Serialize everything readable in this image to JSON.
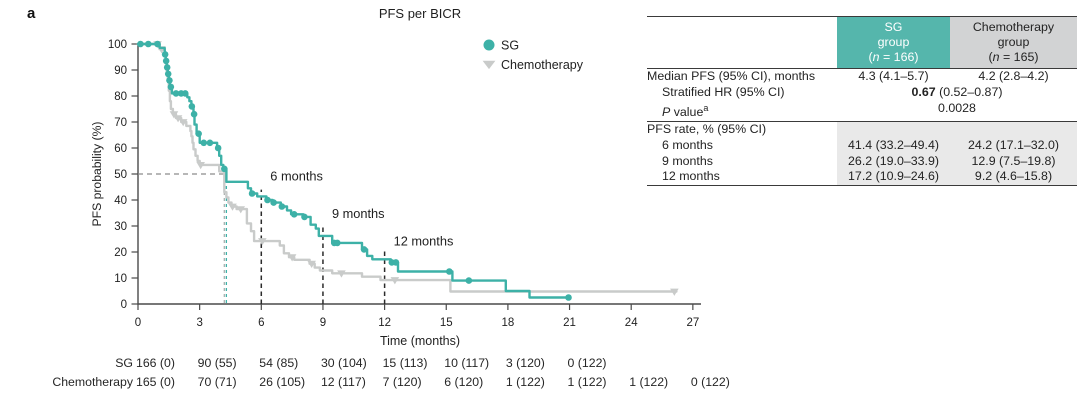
{
  "panel_label": "a",
  "chart_data": {
    "type": "line",
    "subtype": "kaplan-meier-step",
    "title": "PFS per BICR",
    "xlabel": "Time (months)",
    "ylabel": "PFS probability (%)",
    "xlim": [
      0,
      27
    ],
    "ylim": [
      0,
      100
    ],
    "x_ticks": [
      0,
      3,
      6,
      9,
      12,
      15,
      18,
      21,
      24,
      27
    ],
    "y_ticks": [
      0,
      10,
      20,
      30,
      40,
      50,
      60,
      70,
      80,
      90,
      100
    ],
    "grid": false,
    "legend_position": "upper-right-inside",
    "axis_color": "#4a4a4a",
    "series": [
      {
        "name": "Chemotherapy",
        "color": "#c9cbca",
        "marker": "triangle-down",
        "median_months": 4.2,
        "end_t": 26.2,
        "steps": [
          [
            0,
            100
          ],
          [
            1.05,
            98
          ],
          [
            1.3,
            95.5
          ],
          [
            1.35,
            92.5
          ],
          [
            1.4,
            89.5
          ],
          [
            1.45,
            86
          ],
          [
            1.5,
            82
          ],
          [
            1.55,
            78
          ],
          [
            1.6,
            75
          ],
          [
            1.7,
            73
          ],
          [
            1.85,
            71.5
          ],
          [
            2.1,
            70
          ],
          [
            2.35,
            68.5
          ],
          [
            2.55,
            66.5
          ],
          [
            2.6,
            64.5
          ],
          [
            2.65,
            62
          ],
          [
            2.7,
            59.5
          ],
          [
            2.8,
            57
          ],
          [
            2.9,
            55
          ],
          [
            3.0,
            53.5
          ],
          [
            3.95,
            51
          ],
          [
            4.2,
            43
          ],
          [
            4.3,
            41
          ],
          [
            4.4,
            39
          ],
          [
            4.55,
            37.5
          ],
          [
            4.8,
            36.5
          ],
          [
            5.3,
            31
          ],
          [
            5.5,
            28
          ],
          [
            5.65,
            24.2
          ],
          [
            6.9,
            22.5
          ],
          [
            7.1,
            19.5
          ],
          [
            7.35,
            18
          ],
          [
            7.6,
            17
          ],
          [
            8.35,
            15.5
          ],
          [
            8.6,
            14
          ],
          [
            8.85,
            12.9
          ],
          [
            9.45,
            11.8
          ],
          [
            10.9,
            10.5
          ],
          [
            11.8,
            9.2
          ],
          [
            15.2,
            4.8
          ]
        ],
        "censor_marks": [
          [
            0.95,
            100
          ],
          [
            1.15,
            98
          ],
          [
            1.75,
            73
          ],
          [
            1.95,
            71.5
          ],
          [
            2.2,
            70
          ],
          [
            3.05,
            53.5
          ],
          [
            4.6,
            37.5
          ],
          [
            5.0,
            36.5
          ],
          [
            6.05,
            24.2
          ],
          [
            7.5,
            18
          ],
          [
            8.45,
            15.5
          ],
          [
            9.9,
            11.8
          ],
          [
            12.5,
            9.2
          ],
          [
            26.1,
            4.8
          ]
        ]
      },
      {
        "name": "SG",
        "color": "#3db1a7",
        "marker": "circle",
        "median_months": 4.3,
        "end_t": 20.95,
        "steps": [
          [
            0,
            100
          ],
          [
            1.05,
            98.5
          ],
          [
            1.3,
            96
          ],
          [
            1.35,
            93.5
          ],
          [
            1.4,
            91
          ],
          [
            1.45,
            88.5
          ],
          [
            1.5,
            86
          ],
          [
            1.55,
            83.5
          ],
          [
            1.65,
            81
          ],
          [
            2.4,
            79.5
          ],
          [
            2.5,
            78
          ],
          [
            2.6,
            76
          ],
          [
            2.7,
            73
          ],
          [
            2.75,
            69
          ],
          [
            2.85,
            65.5
          ],
          [
            3.0,
            62
          ],
          [
            3.85,
            60
          ],
          [
            3.95,
            57
          ],
          [
            4.05,
            53.5
          ],
          [
            4.15,
            52
          ],
          [
            4.3,
            47
          ],
          [
            5.35,
            44.5
          ],
          [
            5.5,
            42.5
          ],
          [
            5.8,
            41.4
          ],
          [
            6.25,
            40
          ],
          [
            6.55,
            39
          ],
          [
            6.95,
            37.5
          ],
          [
            7.25,
            36
          ],
          [
            7.45,
            34.5
          ],
          [
            8.05,
            33.5
          ],
          [
            8.4,
            30.5
          ],
          [
            8.65,
            29
          ],
          [
            8.8,
            26.2
          ],
          [
            9.45,
            23.5
          ],
          [
            10.9,
            21
          ],
          [
            11.15,
            18.5
          ],
          [
            11.4,
            17.2
          ],
          [
            12.3,
            16
          ],
          [
            12.65,
            12.5
          ],
          [
            15.3,
            9
          ],
          [
            17.9,
            5
          ],
          [
            19.05,
            2.5
          ]
        ],
        "censor_marks": [
          [
            0.12,
            100
          ],
          [
            0.5,
            100
          ],
          [
            0.95,
            100
          ],
          [
            1.32,
            96
          ],
          [
            1.37,
            93.5
          ],
          [
            1.42,
            91
          ],
          [
            1.47,
            88.5
          ],
          [
            1.53,
            86
          ],
          [
            1.6,
            83.5
          ],
          [
            1.85,
            81
          ],
          [
            2.1,
            81
          ],
          [
            2.3,
            81
          ],
          [
            2.62,
            76
          ],
          [
            2.73,
            73
          ],
          [
            2.95,
            65.5
          ],
          [
            3.2,
            62
          ],
          [
            3.5,
            62
          ],
          [
            3.9,
            60
          ],
          [
            4.2,
            52
          ],
          [
            5.55,
            42.5
          ],
          [
            6.3,
            40
          ],
          [
            6.6,
            39
          ],
          [
            7.0,
            37.5
          ],
          [
            7.6,
            34.5
          ],
          [
            8.1,
            33.5
          ],
          [
            9.55,
            23.5
          ],
          [
            9.7,
            23.5
          ],
          [
            11.0,
            21
          ],
          [
            12.35,
            16
          ],
          [
            12.55,
            16
          ],
          [
            15.15,
            12.5
          ],
          [
            16.1,
            9
          ],
          [
            20.95,
            2.5
          ]
        ]
      }
    ],
    "median_annotation": {
      "y_pct": 50,
      "h_line_from_t": 0,
      "h_line_to_t": 4.3,
      "h_color": "#8c8c8c",
      "verticals": [
        {
          "t": 4.2,
          "color": "#abafae"
        },
        {
          "t": 4.3,
          "color": "#3db1a7"
        }
      ]
    },
    "timepoint_annotations": [
      {
        "label": "6 months",
        "t": 6,
        "line_top_pct": 44,
        "label_pct": 47.5
      },
      {
        "label": "9 months",
        "t": 9,
        "line_top_pct": 29.5,
        "label_pct": 33
      },
      {
        "label": "12 months",
        "t": 12,
        "line_top_pct": 20.5,
        "label_pct": 22.5
      }
    ],
    "annotation_line_color": "#2b2b2b"
  },
  "risk_table": {
    "rows": [
      {
        "label": "SG",
        "values": [
          "166 (0)",
          "90 (55)",
          "54 (85)",
          "30 (104)",
          "15 (113)",
          "10 (117)",
          "3 (120)",
          "0 (122)"
        ]
      },
      {
        "label": "Chemotherapy",
        "values": [
          "165 (0)",
          "70 (71)",
          "26 (105)",
          "12 (117)",
          "7 (120)",
          "6 (120)",
          "1 (122)",
          "1 (122)",
          "1 (122)",
          "0 (122)"
        ]
      }
    ]
  },
  "stats_table": {
    "shade_color": "#e9e9e9",
    "columns": [
      {
        "line1": "SG",
        "line2": "group",
        "n_open": "(",
        "n_var": "n",
        "n_rest": " = 166)",
        "bg": "#55b6ac",
        "text_color": "#ffffff"
      },
      {
        "line1": "Chemotherapy",
        "line2": "group",
        "n_open": "(",
        "n_var": "n",
        "n_rest": " = 165)",
        "bg": "#d2d3d4",
        "text_color": "#232323"
      }
    ],
    "rows": [
      {
        "kind": "pair",
        "label": "Median PFS (95% CI), months",
        "indent": 0,
        "sg": "4.3 (4.1–5.7)",
        "chemo": "4.2 (2.8–4.2)",
        "shaded": false
      },
      {
        "kind": "span",
        "label": "Stratified HR (95% CI)",
        "indent": 1,
        "bold": "0.67",
        "rest": " (0.52–0.87)",
        "shaded": false
      },
      {
        "kind": "pvalue",
        "label_italic": "P",
        "label_rest": " value",
        "label_sup": "a",
        "indent": 1,
        "value": "0.0028",
        "divider_after": true,
        "shaded": false
      },
      {
        "kind": "section",
        "label": "PFS rate, % (95% CI)",
        "shaded": true
      },
      {
        "kind": "pair",
        "label": "6 months",
        "indent": 1,
        "sg": "41.4 (33.2–49.4)",
        "chemo": "24.2 (17.1–32.0)",
        "shaded": true
      },
      {
        "kind": "pair",
        "label": "9 months",
        "indent": 1,
        "sg": "26.2 (19.0–33.9)",
        "chemo": "12.9 (7.5–19.8)",
        "shaded": true
      },
      {
        "kind": "pair",
        "label": "12 months",
        "indent": 1,
        "sg": "17.2 (10.9–24.6)",
        "chemo": "9.2 (4.6–15.8)",
        "shaded": true
      }
    ]
  }
}
